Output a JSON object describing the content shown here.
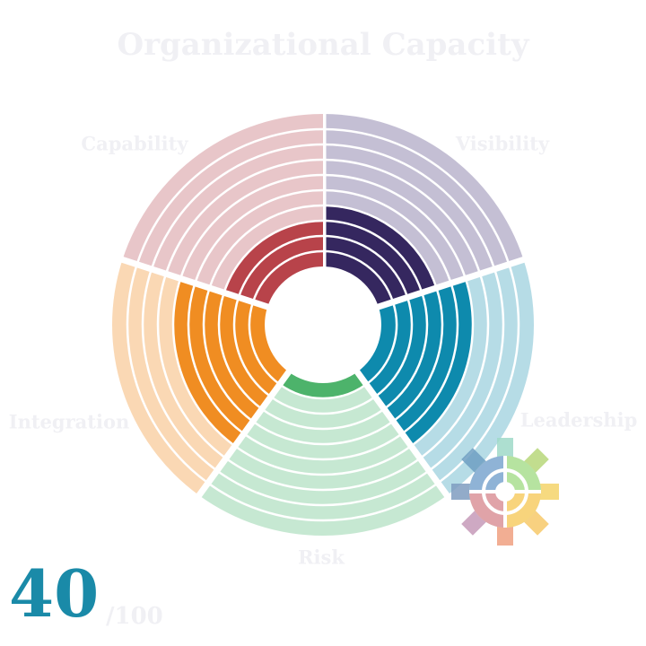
{
  "chart_data": {
    "type": "radial",
    "title": "Organizational Capacity",
    "levels": 10,
    "categories": [
      "Visibility",
      "Leadership",
      "Risk",
      "Integration",
      "Capability"
    ],
    "values": [
      4,
      6,
      1,
      6,
      3
    ],
    "colors": [
      "#35275f",
      "#0e8aad",
      "#4db36b",
      "#f08d22",
      "#b8434a"
    ],
    "light_colors": [
      "#c4bfd4",
      "#b6dce6",
      "#c6e8d2",
      "#fad8b4",
      "#e8c6c9"
    ],
    "score": 40,
    "score_suffix": "/100"
  }
}
